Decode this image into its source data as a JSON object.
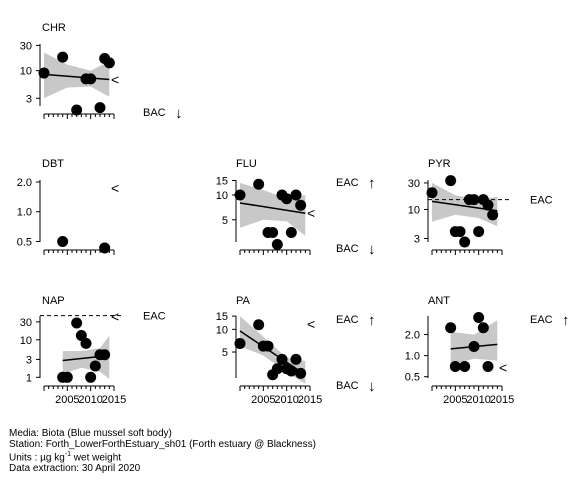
{
  "chart_data": [
    {
      "type": "scatter",
      "title": "CHR",
      "xlim": [
        2000,
        2015
      ],
      "ylim": [
        1.8,
        38
      ],
      "log_y": true,
      "yticks": [
        "3",
        "10",
        "30"
      ],
      "xticks": [],
      "series": [
        {
          "x": [
            2000,
            2004,
            2007,
            2009,
            2010,
            2012,
            2013,
            2014
          ],
          "y": [
            9,
            18,
            1.8,
            7,
            7,
            2,
            17,
            14
          ]
        }
      ],
      "trend": {
        "x": [
          2000,
          2014
        ],
        "y": [
          8.5,
          6.8
        ]
      },
      "band": {
        "x": [
          2000,
          2005,
          2010,
          2014
        ],
        "lo": [
          3,
          4.8,
          5,
          3.2
        ],
        "hi": [
          22,
          13,
          10,
          15
        ]
      },
      "marker_text": "<",
      "assessment": [
        {
          "label": "BAC",
          "arrow": "↓"
        }
      ]
    },
    {
      "type": "scatter",
      "title": "DBT",
      "xlim": [
        2000,
        2015
      ],
      "ylim": [
        0.45,
        2.3
      ],
      "log_y": true,
      "yticks": [
        "0.5",
        "1.0",
        "2.0"
      ],
      "xticks": [],
      "series": [
        {
          "x": [
            2004,
            2013
          ],
          "y": [
            0.5,
            0.43
          ]
        }
      ],
      "marker_text": "<",
      "assessment": []
    },
    {
      "type": "scatter",
      "title": "FLU",
      "xlim": [
        2000,
        2015
      ],
      "ylim": [
        2.4,
        17
      ],
      "log_y": true,
      "yticks": [
        "5",
        "10",
        "15"
      ],
      "xticks": [],
      "series": [
        {
          "x": [
            2000,
            2004,
            2006,
            2007,
            2008,
            2009,
            2010,
            2011,
            2012,
            2013
          ],
          "y": [
            10,
            13.5,
            3.5,
            3.5,
            2.5,
            10,
            9,
            3.5,
            10,
            7.5
          ]
        }
      ],
      "trend": {
        "x": [
          2000,
          2014
        ],
        "y": [
          8,
          6
        ]
      },
      "band": {
        "x": [
          2000,
          2005,
          2010,
          2014
        ],
        "lo": [
          4,
          5,
          4.8,
          3.2
        ],
        "hi": [
          14,
          11.5,
          9,
          10
        ]
      },
      "marker_text": "<",
      "assessment": [
        {
          "label": "EAC",
          "arrow": "↑"
        },
        {
          "label": "BAC",
          "arrow": "↓"
        }
      ]
    },
    {
      "type": "scatter",
      "title": "PYR",
      "xlim": [
        2000,
        2015
      ],
      "ylim": [
        2.2,
        40
      ],
      "log_y": true,
      "yticks": [
        "3",
        "10",
        "30"
      ],
      "xticks": [],
      "series": [
        {
          "x": [
            2000,
            2004,
            2005,
            2006,
            2007,
            2008,
            2009,
            2010,
            2011,
            2012,
            2013
          ],
          "y": [
            20,
            33,
            4,
            4,
            2.6,
            15,
            15,
            4,
            15,
            12,
            8
          ]
        }
      ],
      "trend": {
        "x": [
          2000,
          2014
        ],
        "y": [
          14,
          9.5
        ]
      },
      "band": {
        "x": [
          2000,
          2005,
          2010,
          2014
        ],
        "lo": [
          6,
          8,
          7,
          5
        ],
        "hi": [
          30,
          18,
          15,
          17
        ]
      },
      "ref_line": {
        "value": 15,
        "label": "EAC"
      },
      "assessment": []
    },
    {
      "type": "scatter",
      "title": "NAP",
      "xlim": [
        2000,
        2015
      ],
      "ylim": [
        0.75,
        55
      ],
      "log_y": true,
      "yticks": [
        "1",
        "3",
        "10",
        "30"
      ],
      "xticks": [
        "2005",
        "2010",
        "2015"
      ],
      "series": [
        {
          "x": [
            2004,
            2005,
            2007,
            2008,
            2009,
            2010,
            2011,
            2012,
            2013
          ],
          "y": [
            1,
            1,
            28,
            13,
            8,
            1,
            2,
            4,
            4
          ]
        }
      ],
      "trend": {
        "x": [
          2004,
          2014
        ],
        "y": [
          2.8,
          3.8
        ]
      },
      "band": {
        "x": [
          2004,
          2008,
          2012,
          2014
        ],
        "lo": [
          1.2,
          1.8,
          1.4,
          0.9
        ],
        "hi": [
          5,
          5,
          6,
          13
        ]
      },
      "ref_line": {
        "value": 44,
        "label": "EAC"
      },
      "marker_text": "<",
      "assessment": []
    },
    {
      "type": "scatter",
      "title": "PA",
      "xlim": [
        2000,
        2015
      ],
      "ylim": [
        2,
        17
      ],
      "log_y": true,
      "yticks": [
        "5",
        "10",
        "15"
      ],
      "xticks": [
        "2005",
        "2010",
        "2015"
      ],
      "series": [
        {
          "x": [
            2000,
            2004,
            2005,
            2006,
            2007,
            2008,
            2009,
            2010,
            2011,
            2012,
            2013
          ],
          "y": [
            6.5,
            11.5,
            6,
            6,
            2.5,
            3,
            4,
            3,
            2.8,
            4,
            2.6
          ]
        }
      ],
      "trend": {
        "x": [
          2000,
          2014
        ],
        "y": [
          9.5,
          2.5
        ]
      },
      "band": {
        "x": [
          2000,
          2005,
          2010,
          2014
        ],
        "lo": [
          6,
          4.5,
          2.7,
          1.9
        ],
        "hi": [
          15,
          8,
          4.2,
          3.8
        ]
      },
      "marker_text": "<",
      "assessment": [
        {
          "label": "EAC",
          "arrow": "↑"
        },
        {
          "label": "BAC",
          "arrow": "↓"
        }
      ]
    },
    {
      "type": "scatter",
      "title": "ANT",
      "xlim": [
        2000,
        2015
      ],
      "ylim": [
        0.42,
        4.2
      ],
      "log_y": true,
      "yticks": [
        "0.5",
        "1.0",
        "2.0"
      ],
      "xticks": [
        "2005",
        "2010",
        "2015"
      ],
      "series": [
        {
          "x": [
            2004,
            2005,
            2007,
            2009,
            2010,
            2011,
            2012
          ],
          "y": [
            2.5,
            0.7,
            0.7,
            1.35,
            3.5,
            2.5,
            0.7
          ]
        }
      ],
      "trend": {
        "x": [
          2004,
          2014
        ],
        "y": [
          1.25,
          1.45
        ]
      },
      "band": {
        "x": [
          2004,
          2009,
          2014
        ],
        "lo": [
          0.75,
          0.9,
          0.85
        ],
        "hi": [
          2.2,
          2,
          3.2
        ]
      },
      "marker_text": "<",
      "assessment": [
        {
          "label": "EAC",
          "arrow": "↑"
        }
      ]
    }
  ],
  "footer": {
    "media": "Media: Biota (Blue mussel soft body)",
    "station": "Station: Forth_LowerForthEstuary_sh01 (Forth estuary @ Blackness)",
    "units_prefix": "Units : µg kg",
    "units_sup": "-1",
    "units_suffix": " wet weight",
    "extraction": "Data extraction: 30 April 2020"
  }
}
